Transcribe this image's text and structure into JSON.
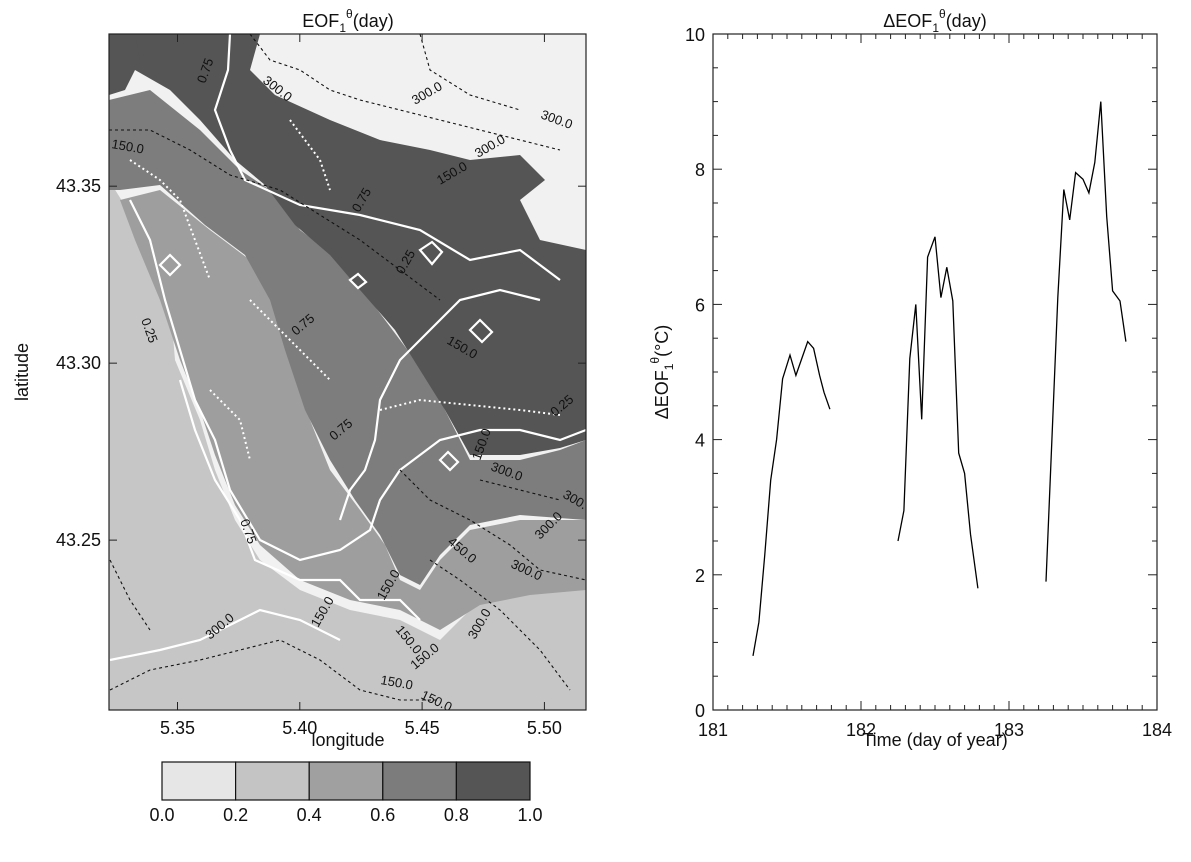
{
  "chart_data": [
    {
      "type": "heatmap",
      "title": "EOF",
      "title_sub": "1",
      "title_sup": "θ",
      "title_suffix": "(day)",
      "xlabel": "longitude",
      "ylabel": "latitude",
      "xticks": [
        "5.35",
        "5.40",
        "5.45",
        "5.50"
      ],
      "xtick_values": [
        5.35,
        5.4,
        5.45,
        5.5
      ],
      "yticks": [
        "43.25",
        "43.30",
        "43.35"
      ],
      "ytick_values": [
        43.25,
        43.3,
        43.35
      ],
      "xlim": [
        5.322,
        5.517
      ],
      "ylim": [
        43.202,
        43.393
      ],
      "colorbar": {
        "ticks": [
          "0.0",
          "0.2",
          "0.4",
          "0.6",
          "0.8",
          "1.0"
        ],
        "colors": [
          "#e6e6e6",
          "#c4c4c4",
          "#a0a0a0",
          "#7c7c7c",
          "#555555"
        ]
      },
      "contour_labels": [
        "300.0",
        "300.0",
        "300.0",
        "300.0",
        "150.0",
        "150.0",
        "150.0",
        "150.0",
        "0.75",
        "0.75",
        "0.75",
        "0.75",
        "0.75",
        "0.25",
        "0.25",
        "0.25",
        "300.0",
        "300.0",
        "300.0",
        "450.0",
        "300.0",
        "300.0",
        "300.0",
        "150.0",
        "150.0",
        "150.0",
        "150.0",
        "150.0",
        "150.0"
      ]
    },
    {
      "type": "line",
      "title": "ΔEOF",
      "title_sub": "1",
      "title_sup": "θ",
      "title_suffix": "(day)",
      "xlabel": "Time (day of year)",
      "ylabel": "ΔEOF",
      "ylabel_sub": "1",
      "ylabel_sup": "θ",
      "ylabel_suffix": "(°C)",
      "xlim": [
        181,
        184
      ],
      "ylim": [
        0,
        10
      ],
      "xticks": [
        "181",
        "182",
        "183",
        "184"
      ],
      "xtick_values": [
        181,
        182,
        183,
        184
      ],
      "yticks": [
        "0",
        "2",
        "4",
        "6",
        "8",
        "10"
      ],
      "ytick_values": [
        0,
        2,
        4,
        6,
        8,
        10
      ],
      "grid": false,
      "segments": [
        {
          "x": [
            181.27,
            181.31,
            181.35,
            181.39,
            181.43,
            181.47,
            181.52,
            181.56,
            181.6,
            181.64,
            181.68,
            181.72,
            181.75,
            181.79
          ],
          "y": [
            0.8,
            1.3,
            2.3,
            3.4,
            4.0,
            4.9,
            5.25,
            4.95,
            5.2,
            5.45,
            5.35,
            4.95,
            4.7,
            4.45
          ]
        },
        {
          "x": [
            182.25,
            182.29,
            182.33,
            182.37,
            182.41,
            182.45,
            182.5,
            182.54,
            182.58,
            182.62,
            182.66,
            182.7,
            182.74,
            182.79
          ],
          "y": [
            2.5,
            2.95,
            5.2,
            6.0,
            4.3,
            6.7,
            7.0,
            6.1,
            6.55,
            6.05,
            3.8,
            3.5,
            2.6,
            1.8
          ]
        },
        {
          "x": [
            183.25,
            183.29,
            183.33,
            183.37,
            183.41,
            183.45,
            183.5,
            183.54,
            183.58,
            183.62,
            183.66,
            183.7,
            183.75,
            183.79
          ],
          "y": [
            1.9,
            4.0,
            6.1,
            7.7,
            7.25,
            7.95,
            7.85,
            7.65,
            8.1,
            9.0,
            7.3,
            6.2,
            6.05,
            5.45
          ]
        }
      ]
    }
  ]
}
